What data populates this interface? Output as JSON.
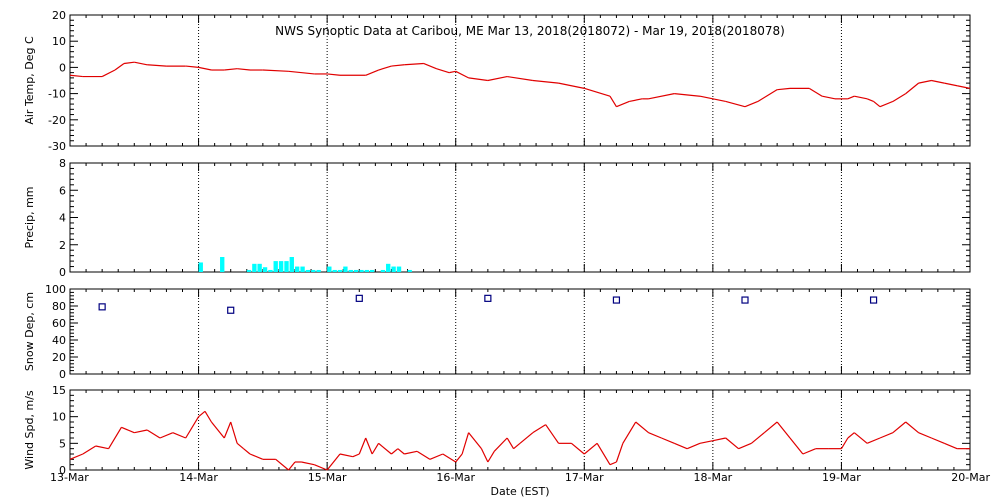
{
  "colors": {
    "background": "#ffffff",
    "axis": "#000000",
    "temp_line": "#e00000",
    "precip_bars": "#00ffff",
    "snow_markers": "#000080",
    "wind_line": "#e00000"
  },
  "chart_data": {
    "type": "multi-panel time series",
    "title": "NWS Synoptic Data at Caribou, ME   Mar 13, 2018(2018072) - Mar 19, 2018(2018078)",
    "xlabel": "Date (EST)",
    "x_unit": "days from 13-Mar",
    "xlim": [
      0,
      7
    ],
    "x_tick_labels": [
      "13-Mar",
      "14-Mar",
      "15-Mar",
      "16-Mar",
      "17-Mar",
      "18-Mar",
      "19-Mar",
      "20-Mar"
    ],
    "x_grid": "dotted vertical lines at each day",
    "panels": [
      {
        "id": "airtemp",
        "type": "line",
        "ylabel": "Air Temp, Deg C",
        "ylim": [
          -30,
          20
        ],
        "y_ticks": [
          -30,
          -20,
          -10,
          0,
          10,
          20
        ],
        "x": [
          0,
          0.1,
          0.25,
          0.35,
          0.42,
          0.5,
          0.6,
          0.75,
          0.9,
          1.0,
          1.1,
          1.2,
          1.3,
          1.4,
          1.5,
          1.7,
          1.9,
          2.0,
          2.1,
          2.3,
          2.4,
          2.5,
          2.6,
          2.75,
          2.85,
          2.95,
          3.0,
          3.1,
          3.25,
          3.4,
          3.6,
          3.8,
          4.0,
          4.2,
          4.25,
          4.35,
          4.45,
          4.5,
          4.7,
          4.9,
          5.1,
          5.25,
          5.35,
          5.5,
          5.6,
          5.75,
          5.85,
          5.95,
          6.05,
          6.1,
          6.2,
          6.25,
          6.3,
          6.4,
          6.5,
          6.6,
          6.7,
          6.8,
          6.9,
          7.0
        ],
        "y": [
          -3,
          -3.5,
          -3.5,
          -1,
          1.5,
          2,
          1,
          0.5,
          0.5,
          0,
          -1,
          -1,
          -0.5,
          -1,
          -1,
          -1.5,
          -2.5,
          -2.5,
          -3,
          -3,
          -1,
          0.5,
          1,
          1.5,
          -0.5,
          -2,
          -1.5,
          -4,
          -5,
          -3.5,
          -5,
          -6,
          -8,
          -11,
          -15,
          -13,
          -12,
          -12,
          -10,
          -11,
          -13,
          -15,
          -13,
          -8.5,
          -8,
          -8,
          -11,
          -12,
          -12,
          -11,
          -12,
          -13,
          -15,
          -13,
          -10,
          -6,
          -5,
          -6,
          -7,
          -8
        ]
      },
      {
        "id": "precip",
        "type": "bar",
        "ylabel": "Precip, mm",
        "ylim": [
          0,
          8
        ],
        "y_ticks": [
          0,
          2,
          4,
          6,
          8
        ],
        "bar_width": 0.0417,
        "x": [
          1.0,
          1.167,
          1.375,
          1.417,
          1.458,
          1.5,
          1.542,
          1.583,
          1.625,
          1.667,
          1.708,
          1.75,
          1.792,
          1.833,
          1.875,
          1.917,
          2.0,
          2.042,
          2.083,
          2.125,
          2.167,
          2.208,
          2.25,
          2.292,
          2.333,
          2.417,
          2.458,
          2.5,
          2.542,
          2.625
        ],
        "values": [
          0.7,
          1.1,
          0.15,
          0.6,
          0.6,
          0.35,
          0.15,
          0.8,
          0.8,
          0.8,
          1.1,
          0.4,
          0.4,
          0.15,
          0.15,
          0.15,
          0.4,
          0.15,
          0.15,
          0.4,
          0.15,
          0.15,
          0.15,
          0.15,
          0.15,
          0.15,
          0.6,
          0.4,
          0.4,
          0.15
        ]
      },
      {
        "id": "snowdepth",
        "type": "scatter",
        "marker": "open-square",
        "ylabel": "Snow Dep, cm",
        "ylim": [
          0,
          100
        ],
        "y_ticks": [
          0,
          20,
          40,
          60,
          80,
          100
        ],
        "x": [
          0.25,
          1.25,
          2.25,
          3.25,
          4.25,
          5.25,
          6.25
        ],
        "y": [
          79,
          75,
          89,
          89,
          87,
          87,
          87
        ]
      },
      {
        "id": "windspeed",
        "type": "line",
        "ylabel": "Wind Spd, m/s",
        "ylim": [
          0,
          15
        ],
        "y_ticks": [
          0,
          5,
          10,
          15
        ],
        "x": [
          0,
          0.1,
          0.2,
          0.3,
          0.4,
          0.5,
          0.6,
          0.7,
          0.8,
          0.9,
          1.0,
          1.05,
          1.1,
          1.2,
          1.25,
          1.3,
          1.35,
          1.4,
          1.5,
          1.6,
          1.7,
          1.75,
          1.8,
          1.9,
          2.0,
          2.1,
          2.2,
          2.25,
          2.3,
          2.35,
          2.4,
          2.5,
          2.55,
          2.6,
          2.7,
          2.8,
          2.9,
          3.0,
          3.05,
          3.1,
          3.2,
          3.25,
          3.3,
          3.4,
          3.45,
          3.5,
          3.6,
          3.7,
          3.8,
          3.9,
          4.0,
          4.1,
          4.2,
          4.25,
          4.3,
          4.4,
          4.5,
          4.6,
          4.7,
          4.8,
          4.9,
          5.0,
          5.1,
          5.2,
          5.3,
          5.4,
          5.5,
          5.6,
          5.7,
          5.8,
          5.9,
          6.0,
          6.05,
          6.1,
          6.2,
          6.3,
          6.4,
          6.5,
          6.6,
          6.7,
          6.8,
          6.9,
          7.0
        ],
        "y": [
          2,
          3,
          4.5,
          4,
          8,
          7,
          7.5,
          6,
          7,
          6,
          10,
          11,
          9,
          6,
          9,
          5,
          4,
          3,
          2,
          2,
          0,
          1.5,
          1.5,
          1,
          0,
          3,
          2.5,
          3,
          6,
          3,
          5,
          3,
          4,
          3,
          3.5,
          2,
          3,
          1.5,
          3,
          7,
          4,
          1.5,
          3.5,
          6,
          4,
          5,
          7,
          8.5,
          5,
          5,
          3,
          5,
          1,
          1.5,
          5,
          9,
          7,
          6,
          5,
          4,
          5,
          5.5,
          6,
          4,
          5,
          7,
          9,
          6,
          3,
          4,
          4,
          4,
          6,
          7,
          5,
          6,
          7,
          9,
          7,
          6,
          5,
          4,
          4
        ]
      }
    ]
  }
}
